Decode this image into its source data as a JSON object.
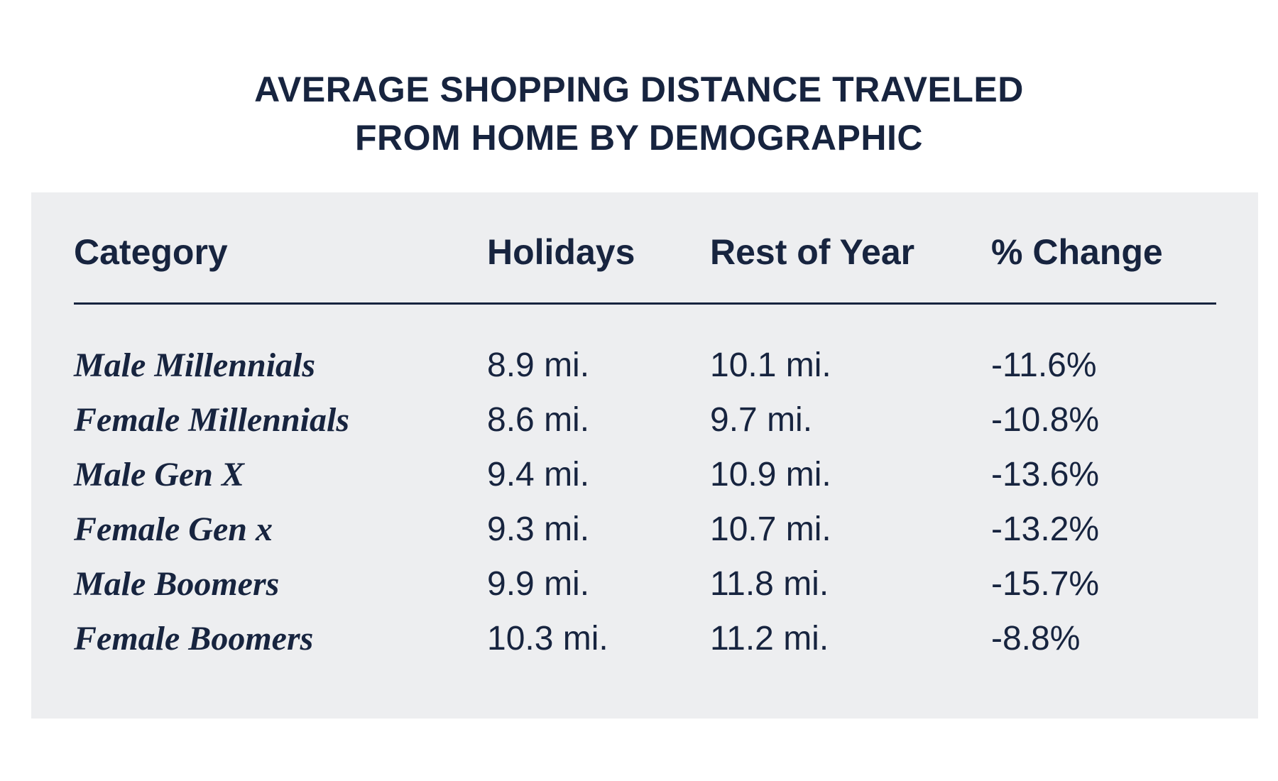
{
  "chart_data": {
    "type": "table",
    "title_lines": [
      "AVERAGE SHOPPING DISTANCE TRAVELED",
      "FROM HOME BY DEMOGRAPHIC"
    ],
    "columns": [
      "Category",
      "Holidays",
      "Rest of Year",
      "% Change"
    ],
    "rows": [
      {
        "category": "Male Millennials",
        "holidays": "8.9 mi.",
        "rest_of_year": "10.1 mi.",
        "change": "-11.6%"
      },
      {
        "category": "Female Millennials",
        "holidays": "8.6 mi.",
        "rest_of_year": "9.7 mi.",
        "change": "-10.8%"
      },
      {
        "category": "Male Gen X",
        "holidays": "9.4 mi.",
        "rest_of_year": "10.9 mi.",
        "change": "-13.6%"
      },
      {
        "category": "Female Gen x",
        "holidays": "9.3 mi.",
        "rest_of_year": "10.7 mi.",
        "change": "-13.2%"
      },
      {
        "category": "Male Boomers",
        "holidays": "9.9 mi.",
        "rest_of_year": "11.8 mi.",
        "change": "-15.7%"
      },
      {
        "category": "Female Boomers",
        "holidays": "10.3 mi.",
        "rest_of_year": "11.2 mi.",
        "change": "-8.8%"
      }
    ]
  },
  "colors": {
    "text": "#17243f",
    "panel_background": "#edeef0",
    "page_background": "#ffffff"
  }
}
